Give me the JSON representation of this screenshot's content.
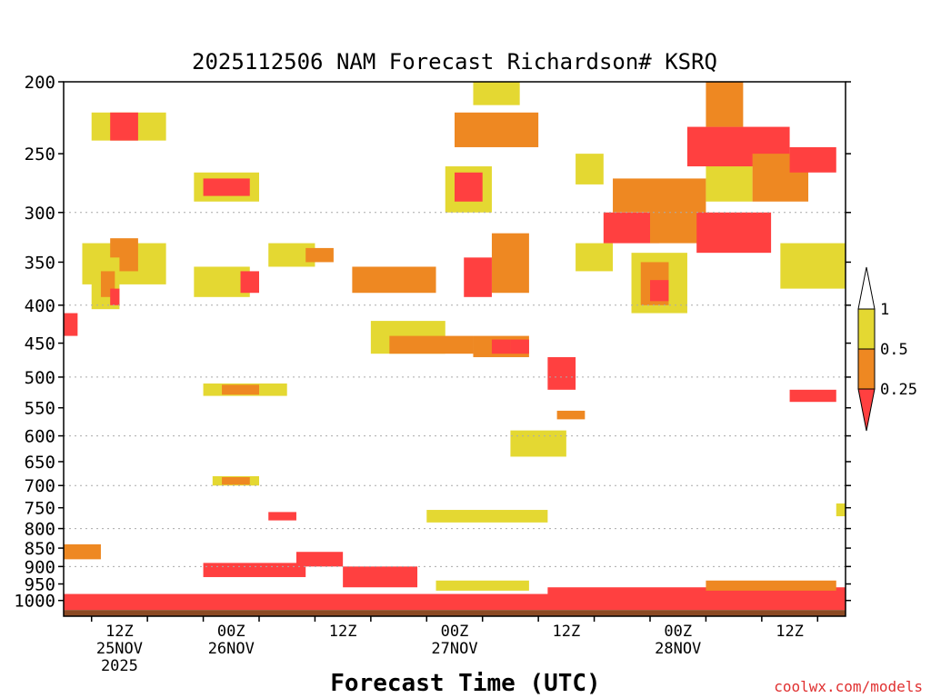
{
  "chart_data": {
    "type": "heatmap",
    "title": "2025112506 NAM Forecast Richardson# KSRQ",
    "xlabel": "Forecast Time (UTC)",
    "ylabel": "",
    "credit": "coolwx.com/models",
    "y_axis": {
      "scale": "log-pressure",
      "range": [
        1050,
        200
      ],
      "tick_labels": [
        "200",
        "250",
        "300",
        "350",
        "400",
        "450",
        "500",
        "550",
        "600",
        "650",
        "700",
        "750",
        "800",
        "850",
        "900",
        "950",
        "1000"
      ],
      "gridlines": [
        300,
        400,
        500,
        600,
        700,
        800,
        900
      ]
    },
    "x_axis": {
      "range_hours": [
        3,
        87
      ],
      "ticks": [
        {
          "hour": 9,
          "lines": [
            "12Z",
            "25NOV",
            "2025"
          ]
        },
        {
          "hour": 21,
          "lines": [
            "00Z",
            "26NOV"
          ]
        },
        {
          "hour": 33,
          "lines": [
            "12Z"
          ]
        },
        {
          "hour": 45,
          "lines": [
            "00Z",
            "27NOV"
          ]
        },
        {
          "hour": 57,
          "lines": [
            "12Z"
          ]
        },
        {
          "hour": 69,
          "lines": [
            "00Z",
            "28NOV"
          ]
        },
        {
          "hour": 81,
          "lines": [
            "12Z"
          ]
        }
      ]
    },
    "legend": {
      "placement": "right",
      "labels": [
        "1",
        "0.5",
        "0.25"
      ],
      "bins": [
        {
          "range": "<0.25",
          "color": "#ff4040"
        },
        {
          "range": "0.25-0.5",
          "color": "#ee8822"
        },
        {
          "range": "0.5-1",
          "color": "#e4d832"
        },
        {
          "range": ">1",
          "color": "#ffffff"
        }
      ]
    },
    "colors": {
      "red": "#ff4040",
      "orange": "#ee8822",
      "yellow": "#e4d832",
      "ground": "#8b4a24",
      "grid": "#aaaaaa"
    },
    "regions": [
      {
        "t": [
          5,
          14
        ],
        "p": [
          330,
          375
        ],
        "ri": "0.5-1"
      },
      {
        "t": [
          8,
          11
        ],
        "p": [
          325,
          360
        ],
        "ri": "0.25-0.5"
      },
      {
        "t": [
          6,
          9
        ],
        "p": [
          345,
          405
        ],
        "ri": "0.5-1"
      },
      {
        "t": [
          7,
          8.5
        ],
        "p": [
          360,
          390
        ],
        "ri": "0.25-0.5"
      },
      {
        "t": [
          8,
          9
        ],
        "p": [
          380,
          400
        ],
        "ri": "<0.25"
      },
      {
        "t": [
          3,
          4.5
        ],
        "p": [
          410,
          440
        ],
        "ri": "<0.25"
      },
      {
        "t": [
          6,
          14
        ],
        "p": [
          220,
          240
        ],
        "ri": "0.5-1"
      },
      {
        "t": [
          8,
          11
        ],
        "p": [
          220,
          240
        ],
        "ri": "<0.25"
      },
      {
        "t": [
          17,
          24
        ],
        "p": [
          265,
          290
        ],
        "ri": "0.5-1"
      },
      {
        "t": [
          18,
          23
        ],
        "p": [
          270,
          285
        ],
        "ri": "<0.25"
      },
      {
        "t": [
          18,
          27
        ],
        "p": [
          510,
          530
        ],
        "ri": "0.5-1"
      },
      {
        "t": [
          20,
          24
        ],
        "p": [
          512,
          528
        ],
        "ri": "0.25-0.5"
      },
      {
        "t": [
          17,
          23
        ],
        "p": [
          355,
          390
        ],
        "ri": "0.5-1"
      },
      {
        "t": [
          22,
          24
        ],
        "p": [
          360,
          385
        ],
        "ri": "<0.25"
      },
      {
        "t": [
          25,
          30
        ],
        "p": [
          330,
          355
        ],
        "ri": "0.5-1"
      },
      {
        "t": [
          29,
          32
        ],
        "p": [
          335,
          350
        ],
        "ri": "0.25-0.5"
      },
      {
        "t": [
          34,
          43
        ],
        "p": [
          355,
          385
        ],
        "ri": "0.25-0.5"
      },
      {
        "t": [
          36,
          44
        ],
        "p": [
          420,
          465
        ],
        "ri": "0.5-1"
      },
      {
        "t": [
          38,
          47
        ],
        "p": [
          440,
          465
        ],
        "ri": "0.25-0.5"
      },
      {
        "t": [
          44,
          49
        ],
        "p": [
          260,
          300
        ],
        "ri": "0.5-1"
      },
      {
        "t": [
          45,
          48
        ],
        "p": [
          265,
          290
        ],
        "ri": "<0.25"
      },
      {
        "t": [
          45,
          54
        ],
        "p": [
          220,
          245
        ],
        "ri": "0.25-0.5"
      },
      {
        "t": [
          47,
          52
        ],
        "p": [
          200,
          215
        ],
        "ri": "0.5-1"
      },
      {
        "t": [
          49,
          53
        ],
        "p": [
          320,
          385
        ],
        "ri": "0.25-0.5"
      },
      {
        "t": [
          46,
          49
        ],
        "p": [
          345,
          390
        ],
        "ri": "<0.25"
      },
      {
        "t": [
          47,
          53
        ],
        "p": [
          440,
          470
        ],
        "ri": "0.25-0.5"
      },
      {
        "t": [
          49,
          51
        ],
        "p": [
          445,
          465
        ],
        "ri": "<0.25"
      },
      {
        "t": [
          51,
          53
        ],
        "p": [
          445,
          465
        ],
        "ri": "<0.25"
      },
      {
        "t": [
          55,
          58
        ],
        "p": [
          470,
          520
        ],
        "ri": "<0.25"
      },
      {
        "t": [
          58,
          61
        ],
        "p": [
          250,
          275
        ],
        "ri": "0.5-1"
      },
      {
        "t": [
          58,
          62
        ],
        "p": [
          330,
          360
        ],
        "ri": "0.5-1"
      },
      {
        "t": [
          62,
          66
        ],
        "p": [
          270,
          300
        ],
        "ri": "0.25-0.5"
      },
      {
        "t": [
          61,
          67
        ],
        "p": [
          300,
          330
        ],
        "ri": "<0.25"
      },
      {
        "t": [
          64,
          70
        ],
        "p": [
          340,
          410
        ],
        "ri": "0.5-1"
      },
      {
        "t": [
          65,
          68
        ],
        "p": [
          350,
          400
        ],
        "ri": "0.25-0.5"
      },
      {
        "t": [
          66,
          68
        ],
        "p": [
          370,
          395
        ],
        "ri": "<0.25"
      },
      {
        "t": [
          66,
          72
        ],
        "p": [
          270,
          330
        ],
        "ri": "0.25-0.5"
      },
      {
        "t": [
          72,
          77
        ],
        "p": [
          250,
          290
        ],
        "ri": "0.5-1"
      },
      {
        "t": [
          70,
          81
        ],
        "p": [
          230,
          260
        ],
        "ri": "<0.25"
      },
      {
        "t": [
          72,
          76
        ],
        "p": [
          200,
          230
        ],
        "ri": "0.25-0.5"
      },
      {
        "t": [
          71,
          79
        ],
        "p": [
          300,
          340
        ],
        "ri": "<0.25"
      },
      {
        "t": [
          77,
          83
        ],
        "p": [
          250,
          290
        ],
        "ri": "0.25-0.5"
      },
      {
        "t": [
          81,
          86
        ],
        "p": [
          245,
          265
        ],
        "ri": "<0.25"
      },
      {
        "t": [
          80,
          87
        ],
        "p": [
          330,
          380
        ],
        "ri": "0.5-1"
      },
      {
        "t": [
          81,
          86
        ],
        "p": [
          520,
          540
        ],
        "ri": "<0.25"
      },
      {
        "t": [
          51,
          57
        ],
        "p": [
          590,
          640
        ],
        "ri": "0.5-1"
      },
      {
        "t": [
          56,
          59
        ],
        "p": [
          555,
          570
        ],
        "ri": "0.25-0.5"
      },
      {
        "t": [
          19,
          24
        ],
        "p": [
          680,
          700
        ],
        "ri": "0.5-1"
      },
      {
        "t": [
          20,
          23
        ],
        "p": [
          682,
          698
        ],
        "ri": "0.25-0.5"
      },
      {
        "t": [
          45,
          53
        ],
        "p": [
          760,
          780
        ],
        "ri": "<0.25"
      },
      {
        "t": [
          42,
          55
        ],
        "p": [
          755,
          785
        ],
        "ri": "0.5-1"
      },
      {
        "t": [
          25,
          28
        ],
        "p": [
          760,
          780
        ],
        "ri": "<0.25"
      },
      {
        "t": [
          3,
          7
        ],
        "p": [
          840,
          880
        ],
        "ri": "0.25-0.5"
      },
      {
        "t": [
          28,
          33
        ],
        "p": [
          860,
          900
        ],
        "ri": "<0.25"
      },
      {
        "t": [
          33,
          41
        ],
        "p": [
          900,
          960
        ],
        "ri": "<0.25"
      },
      {
        "t": [
          18,
          29
        ],
        "p": [
          890,
          930
        ],
        "ri": "<0.25"
      },
      {
        "t": [
          3,
          87
        ],
        "p": [
          980,
          1030
        ],
        "ri": "<0.25"
      },
      {
        "t": [
          55,
          87
        ],
        "p": [
          960,
          1010
        ],
        "ri": "<0.25"
      },
      {
        "t": [
          43,
          53
        ],
        "p": [
          940,
          970
        ],
        "ri": "0.5-1"
      },
      {
        "t": [
          72,
          86
        ],
        "p": [
          940,
          970
        ],
        "ri": "0.25-0.5"
      },
      {
        "t": [
          86,
          87
        ],
        "p": [
          740,
          770
        ],
        "ri": "0.5-1"
      }
    ]
  }
}
